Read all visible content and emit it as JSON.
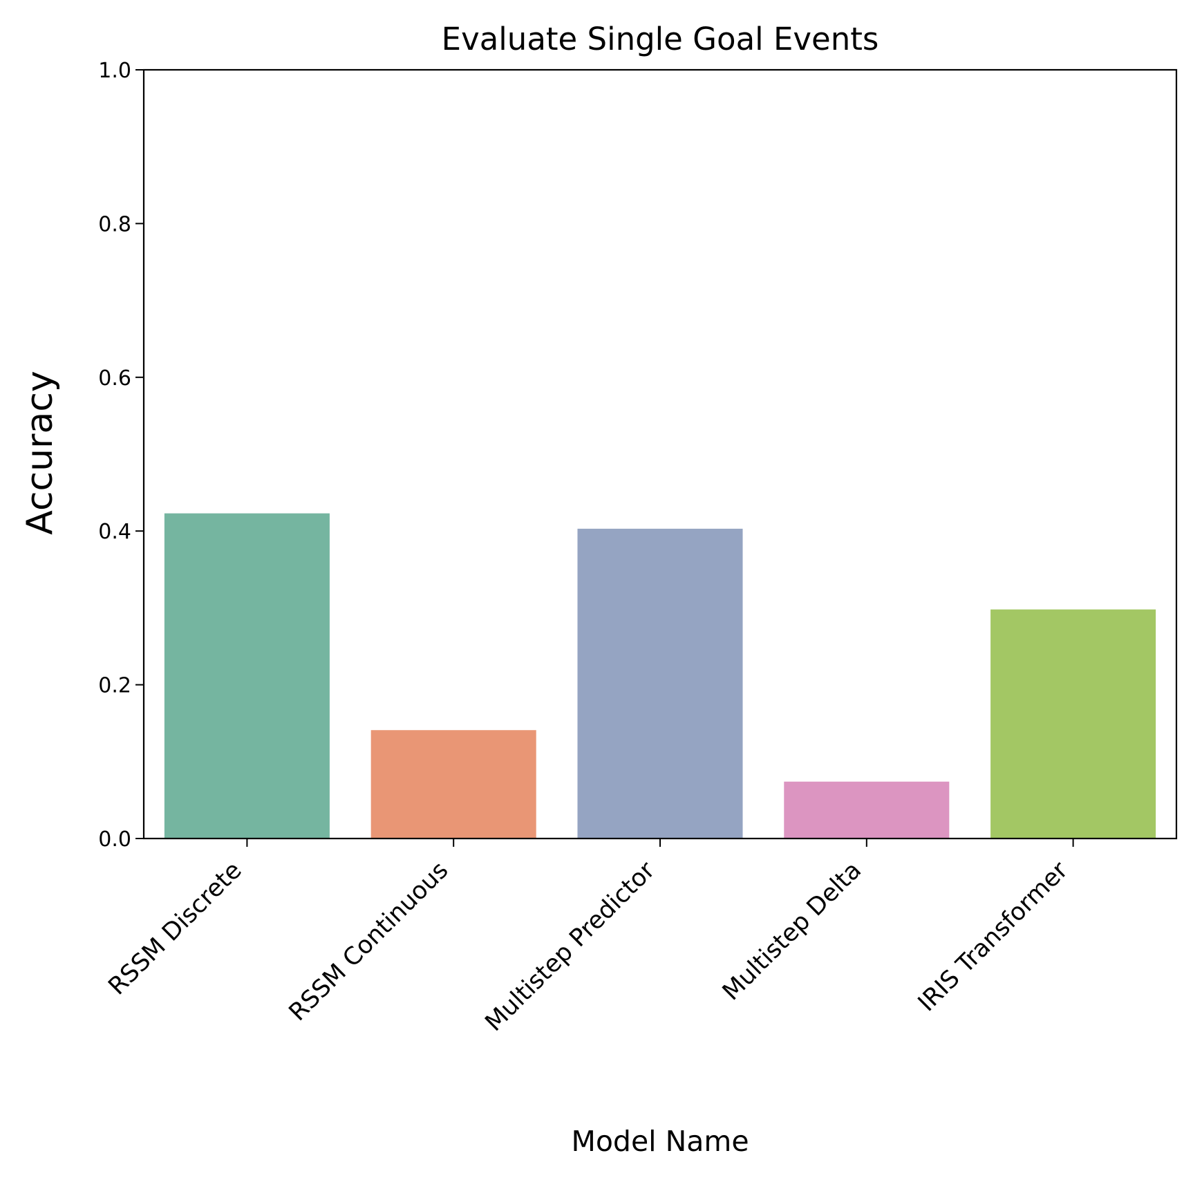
{
  "chart_data": {
    "type": "bar",
    "title": "Evaluate Single Goal Events",
    "xlabel": "Model Name",
    "ylabel": "Accuracy",
    "ylim": [
      0,
      1.0
    ],
    "yticks": [
      "0.0",
      "0.2",
      "0.4",
      "0.6",
      "0.8",
      "1.0"
    ],
    "categories": [
      "RSSM Discrete",
      "RSSM Continuous",
      "Multistep Predictor",
      "Multistep Delta",
      "IRIS Transformer"
    ],
    "values": [
      0.423,
      0.141,
      0.403,
      0.074,
      0.298
    ],
    "colors": [
      "#75b5a0",
      "#e99675",
      "#95a4c2",
      "#dc95c1",
      "#a3c764"
    ],
    "grid": false,
    "legend": "none"
  }
}
